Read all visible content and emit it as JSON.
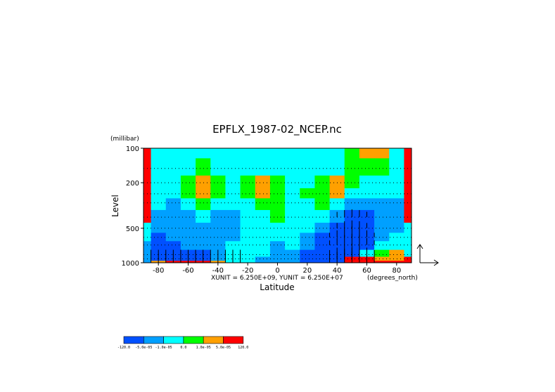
{
  "chart_data": {
    "type": "heatmap",
    "title": "EPFLX_1987-02_NCEP.nc",
    "xlabel": "Latitude",
    "ylabel": "Level",
    "y_unit_label": "(millibar)",
    "x_unit_label": "(degrees_north)",
    "x_range": [
      -90,
      90
    ],
    "y_range": [
      1000,
      100
    ],
    "y_scale": "log",
    "x_ticks": [
      -80,
      -60,
      -40,
      -20,
      0,
      20,
      40,
      60,
      80
    ],
    "x_tick_labels": [
      "-80",
      "-60",
      "-40",
      "-20",
      "0",
      "20",
      "40",
      "60",
      "80"
    ],
    "y_ticks": [
      100,
      200,
      500,
      1000
    ],
    "y_tick_labels": [
      "100",
      "200",
      "500",
      "1000"
    ],
    "vector_unit_text": "XUNIT = 6.250E+09, YUNIT = 6.250E+07",
    "grid": "dotted horizontal at each level",
    "colorbar": {
      "placement": "bottom-left",
      "colors": [
        "#0050ff",
        "#00a0ff",
        "#00ffff",
        "#00ff00",
        "#ffa000",
        "#ff0000"
      ],
      "labels": [
        "-120.0",
        "-5.0e-05",
        "-1.0e-05",
        "0.0",
        "1.0e-05",
        "5.0e-05",
        "120.0"
      ]
    },
    "pressure_levels": [
      100,
      150,
      200,
      250,
      300,
      400,
      500,
      600,
      700,
      850,
      925,
      1000
    ],
    "latitude_step": 10,
    "field_classes_by_level": [
      {
        "level": 100,
        "values": [
          5,
          2,
          2,
          2,
          2,
          2,
          2,
          2,
          2,
          2,
          2,
          2,
          2,
          2,
          3,
          4,
          4,
          2,
          5
        ]
      },
      {
        "level": 150,
        "values": [
          5,
          2,
          2,
          2,
          3,
          2,
          2,
          2,
          2,
          2,
          2,
          2,
          2,
          2,
          3,
          3,
          3,
          2,
          5
        ]
      },
      {
        "level": 200,
        "values": [
          5,
          2,
          2,
          3,
          4,
          3,
          2,
          3,
          4,
          3,
          2,
          2,
          3,
          4,
          3,
          2,
          2,
          2,
          5
        ]
      },
      {
        "level": 250,
        "values": [
          5,
          2,
          2,
          3,
          4,
          3,
          2,
          3,
          4,
          3,
          2,
          3,
          3,
          4,
          2,
          2,
          2,
          2,
          5
        ]
      },
      {
        "level": 300,
        "values": [
          5,
          2,
          1,
          2,
          3,
          2,
          2,
          2,
          3,
          3,
          2,
          2,
          3,
          2,
          1,
          1,
          1,
          1,
          5
        ]
      },
      {
        "level": 400,
        "values": [
          5,
          1,
          1,
          1,
          2,
          1,
          1,
          2,
          2,
          3,
          2,
          2,
          2,
          1,
          0,
          0,
          1,
          1,
          5
        ]
      },
      {
        "level": 500,
        "values": [
          2,
          1,
          1,
          1,
          1,
          1,
          1,
          2,
          2,
          2,
          2,
          2,
          1,
          0,
          0,
          0,
          1,
          1,
          2
        ]
      },
      {
        "level": 600,
        "values": [
          2,
          0,
          1,
          1,
          1,
          1,
          1,
          2,
          2,
          2,
          2,
          1,
          0,
          0,
          0,
          0,
          1,
          2,
          2
        ]
      },
      {
        "level": 700,
        "values": [
          1,
          0,
          0,
          1,
          1,
          1,
          2,
          2,
          2,
          1,
          2,
          1,
          0,
          0,
          0,
          0,
          2,
          2,
          2
        ]
      },
      {
        "level": 850,
        "values": [
          1,
          0,
          0,
          0,
          0,
          1,
          2,
          2,
          2,
          1,
          1,
          0,
          0,
          0,
          0,
          2,
          3,
          4,
          2
        ]
      },
      {
        "level": 925,
        "values": [
          1,
          0,
          0,
          0,
          0,
          1,
          2,
          2,
          1,
          1,
          1,
          0,
          0,
          0,
          5,
          5,
          4,
          4,
          5
        ]
      },
      {
        "level": 1000,
        "values": [
          1,
          4,
          5,
          5,
          5,
          4,
          2,
          2,
          1,
          1,
          1,
          0,
          0,
          0,
          5,
          5,
          5,
          5,
          5
        ]
      }
    ]
  }
}
